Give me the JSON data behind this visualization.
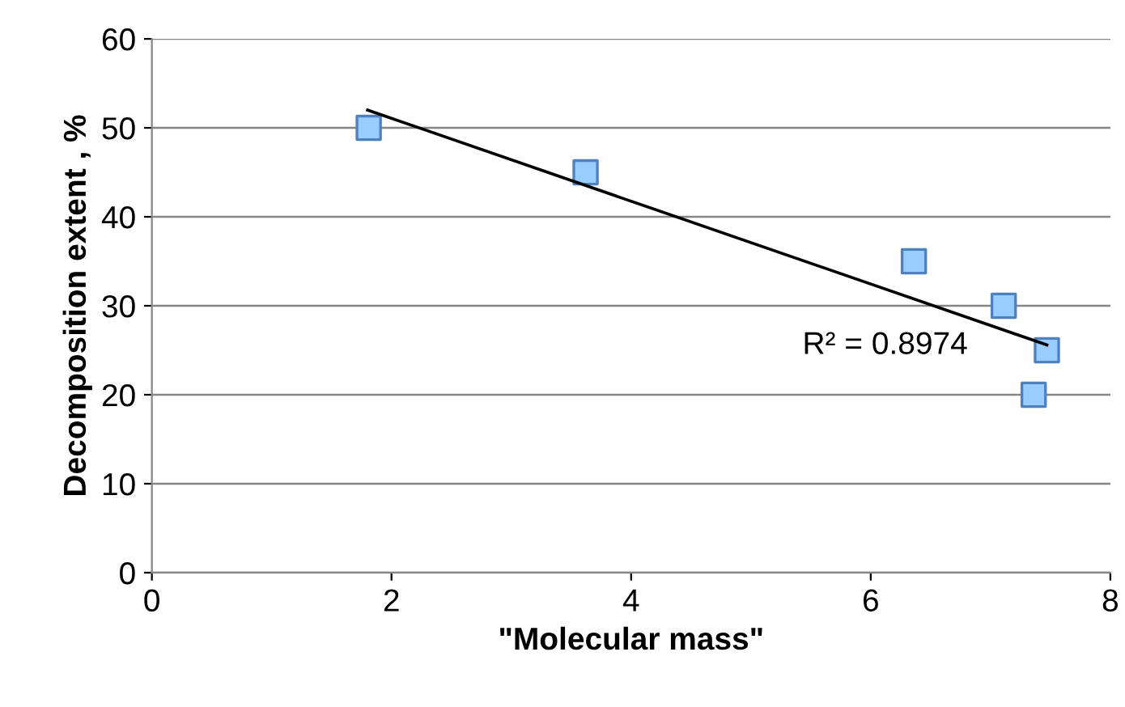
{
  "chart_data": {
    "type": "scatter",
    "xlabel": "\"Molecular mass\"",
    "ylabel": "Decomposition extent , %",
    "series": [
      {
        "color": "#99ccff",
        "marker": "square",
        "x": [
          1.81,
          3.62,
          6.36,
          7.11,
          7.36,
          7.47
        ],
        "values": [
          50,
          45,
          35,
          30,
          20,
          25
        ]
      },
      {
        "type": "line",
        "color": "#000000",
        "marker": "none",
        "x": [
          1.8,
          7.47
        ],
        "values": [
          52,
          25.6
        ]
      }
    ],
    "annotations": [
      "R² = 0.8974"
    ],
    "xlim": [
      0,
      8
    ],
    "ylim": [
      0,
      60
    ],
    "xticks": [
      0,
      2,
      4,
      6,
      8
    ],
    "yticks": [
      0,
      10,
      20,
      30,
      40,
      50,
      60
    ],
    "grid": "y",
    "legend": false
  }
}
